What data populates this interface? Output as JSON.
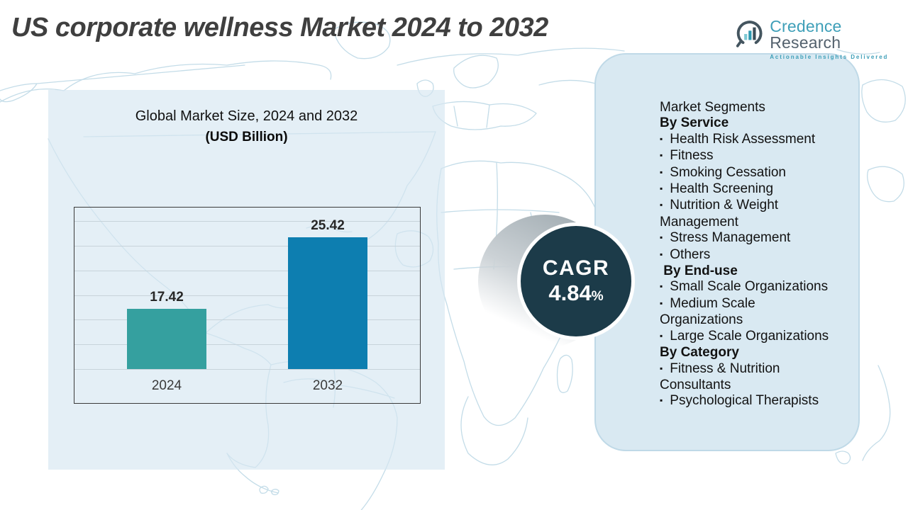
{
  "header": {
    "title": "US corporate wellness Market 2024 to 2032"
  },
  "logo": {
    "brand_primary": "Credence",
    "brand_secondary": "Research",
    "tagline": "Actionable Insights Delivered"
  },
  "chart_data": {
    "type": "bar",
    "title": "Global Market Size, 2024 and 2032",
    "subtitle": "(USD Billion)",
    "unit": "USD Billion",
    "categories": [
      "2024",
      "2032"
    ],
    "values": [
      17.42,
      25.42
    ],
    "bar_colors": [
      "#35a09f",
      "#0d7eb0"
    ],
    "ylim": [
      10.6,
      28.8
    ],
    "grid": true,
    "gridline_count": 7,
    "legend": "none",
    "xlabel": "",
    "ylabel": ""
  },
  "cagr": {
    "label": "CAGR",
    "value": "4.84",
    "percent_sign": "%"
  },
  "segments": {
    "title": "Market Segments",
    "bullet": "▪",
    "groups": [
      {
        "heading": "By Service",
        "items": [
          "Health Risk Assessment",
          "Fitness",
          "Smoking Cessation",
          "Health Screening",
          "Nutrition & Weight Management",
          "Stress Management",
          "Others"
        ]
      },
      {
        "heading": " By End-use",
        "items": [
          "Small Scale Organizations",
          "Medium Scale Organizations",
          "Large Scale Organizations"
        ]
      },
      {
        "heading": "By Category",
        "items": [
          "Fitness & Nutrition Consultants",
          "Psychological Therapists"
        ]
      }
    ]
  },
  "colors": {
    "bar_2024": "#35a09f",
    "bar_2032": "#0d7eb0",
    "cagr_circle": "#1c3b49",
    "panel_fill": "#d9e9f2",
    "panel_border": "#bfd9e7",
    "map_line": "#c3dce8",
    "title_text": "#3f3f3f",
    "logo_teal": "#3e9fb8",
    "logo_slate": "#53616d"
  }
}
